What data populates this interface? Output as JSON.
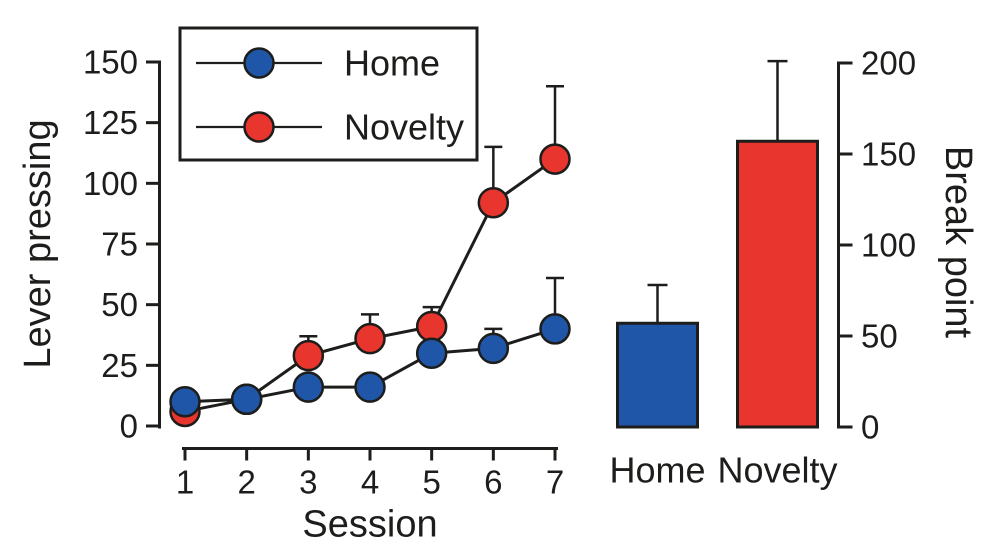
{
  "figure": {
    "bg": "#ffffff",
    "ink": "#1d1d1b",
    "accent_blue": "#1f56a8",
    "accent_red": "#e8352e"
  },
  "legend": {
    "items": [
      {
        "label": "Home"
      },
      {
        "label": "Novelty"
      }
    ]
  },
  "chart_data": [
    {
      "type": "line",
      "title": "",
      "xlabel": "Session",
      "ylabel": "Lever pressing",
      "x": [
        1,
        2,
        3,
        4,
        5,
        6,
        7
      ],
      "xticklabels": [
        "1",
        "2",
        "3",
        "4",
        "5",
        "6",
        "7"
      ],
      "ylim": [
        0,
        150
      ],
      "yticks": [
        0,
        25,
        50,
        75,
        100,
        125,
        150
      ],
      "grid": false,
      "legend_position": "inside-top-left",
      "marker": "circle",
      "error_bars": "upper-only",
      "series": [
        {
          "name": "Home",
          "color": "#1f56a8",
          "values": [
            10,
            11,
            16,
            16,
            30,
            32,
            40
          ],
          "err_up": [
            0,
            0,
            0,
            0,
            0,
            8,
            21
          ]
        },
        {
          "name": "Novelty",
          "color": "#e8352e",
          "values": [
            6,
            11,
            29,
            36,
            41,
            92,
            110
          ],
          "err_up": [
            0,
            0,
            8,
            10,
            8,
            23,
            30
          ]
        }
      ]
    },
    {
      "type": "bar",
      "title": "",
      "xlabel": "",
      "ylabel": "Break point",
      "categories": [
        "Home",
        "Novelty"
      ],
      "values": [
        57,
        157
      ],
      "err_up": [
        21,
        44
      ],
      "colors": [
        "#1f56a8",
        "#e8352e"
      ],
      "ylim": [
        0,
        200
      ],
      "yticks": [
        0,
        50,
        100,
        150,
        200
      ],
      "axis_side": "right",
      "grid": false
    }
  ]
}
